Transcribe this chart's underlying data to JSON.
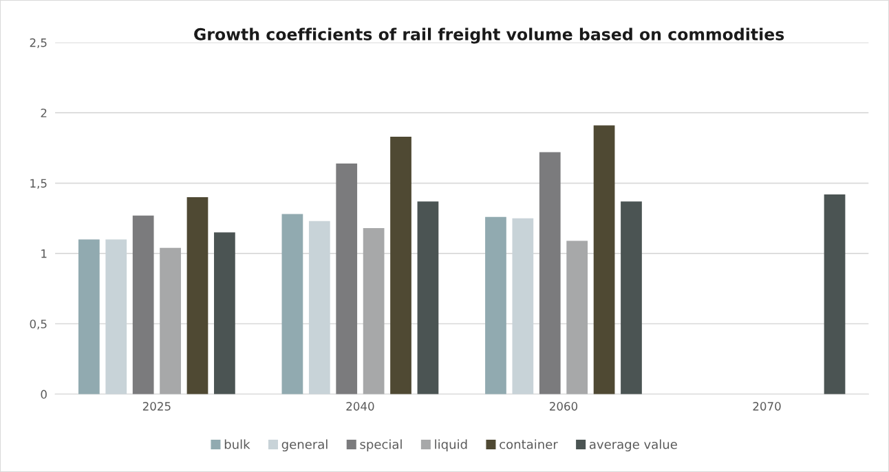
{
  "chart_data": {
    "type": "bar",
    "title": "Growth coefficients of rail freight volume based on commodities",
    "categories": [
      "2025",
      "2040",
      "2060",
      "2070"
    ],
    "series": [
      {
        "name": "bulk",
        "color": "#91aab0",
        "values": [
          1.1,
          1.28,
          1.26,
          null
        ]
      },
      {
        "name": "general",
        "color": "#c8d3d8",
        "values": [
          1.1,
          1.23,
          1.25,
          null
        ]
      },
      {
        "name": "special",
        "color": "#7b7b7d",
        "values": [
          1.27,
          1.64,
          1.72,
          null
        ]
      },
      {
        "name": "liquid",
        "color": "#a7a8a9",
        "values": [
          1.04,
          1.18,
          1.09,
          null
        ]
      },
      {
        "name": "container",
        "color": "#4f4933",
        "values": [
          1.4,
          1.83,
          1.91,
          null
        ]
      },
      {
        "name": "average value",
        "color": "#4b5453",
        "values": [
          1.15,
          1.37,
          1.37,
          1.42
        ]
      }
    ],
    "ylim": [
      0,
      2.5
    ],
    "yticks": [
      0,
      {
        "value": 0.5,
        "label": "0,5"
      },
      1,
      {
        "value": 1.5,
        "label": "1,5"
      },
      2,
      {
        "value": 2.5,
        "label": "2,5"
      }
    ],
    "grid": "y",
    "legend": "bottom"
  }
}
